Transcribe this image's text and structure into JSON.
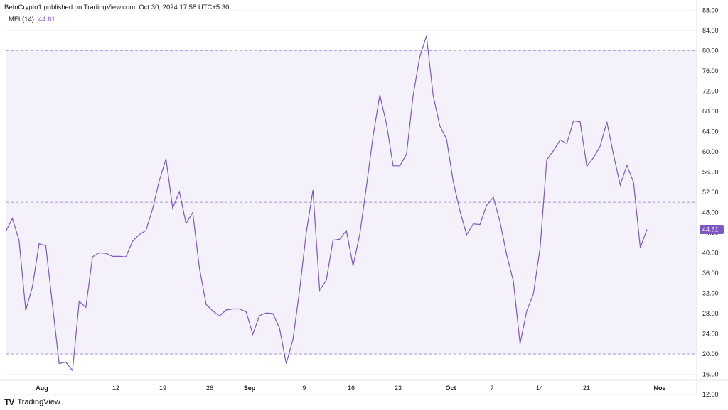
{
  "header": {
    "text": "BeInCrypto1 published on TradingView.com, Oct 30, 2024 17:58 UTC+5:30"
  },
  "legend": {
    "name": "MFI (14)",
    "value": "44.61"
  },
  "footer": {
    "brand": "TradingView",
    "logo": "TV"
  },
  "colors": {
    "line": "#7e57c2",
    "band": "#ede7f6",
    "level": "#9575cd",
    "badge": "#7e57c2"
  },
  "chart_data": {
    "type": "line",
    "ylim": [
      12,
      90
    ],
    "xlim": [
      0,
      150
    ],
    "band": [
      20,
      80
    ],
    "levels": [
      20,
      50,
      80
    ],
    "y_ticks": [
      12,
      16,
      20,
      24,
      28,
      32,
      36,
      40,
      44,
      48,
      52,
      56,
      60,
      64,
      68,
      72,
      76,
      80,
      84,
      88
    ],
    "x_ticks": [
      {
        "x": 8,
        "label": "Aug",
        "bold": true
      },
      {
        "x": 23,
        "label": "12",
        "bold": false
      },
      {
        "x": 33,
        "label": "19",
        "bold": false
      },
      {
        "x": 43,
        "label": "26",
        "bold": false
      },
      {
        "x": 51,
        "label": "Sep",
        "bold": true
      },
      {
        "x": 63,
        "label": "9",
        "bold": false
      },
      {
        "x": 73,
        "label": "16",
        "bold": false
      },
      {
        "x": 83,
        "label": "23",
        "bold": false
      },
      {
        "x": 93,
        "label": "Oct",
        "bold": true
      },
      {
        "x": 103,
        "label": "7",
        "bold": false
      },
      {
        "x": 113,
        "label": "14",
        "bold": false
      },
      {
        "x": 123,
        "label": "21",
        "bold": false
      },
      {
        "x": 137,
        "label": "Nov",
        "bold": true
      }
    ],
    "last_value_label": "44.61",
    "values": [
      44.2,
      46.8,
      42.5,
      28.6,
      33.3,
      41.8,
      41.4,
      29.7,
      18.1,
      18.4,
      16.7,
      30.4,
      29.2,
      39.2,
      40,
      39.9,
      39.3,
      39.3,
      39.2,
      42.3,
      43.6,
      44.4,
      48.7,
      54.3,
      58.6,
      48.8,
      52.1,
      45.8,
      48,
      37,
      29.8,
      28.5,
      27.5,
      28.7,
      28.9,
      28.9,
      28.3,
      23.9,
      27.6,
      28.1,
      28,
      25.1,
      18.1,
      22.8,
      32.6,
      44,
      52.4,
      32.6,
      34.6,
      42.5,
      42.7,
      44.4,
      37.4,
      43.6,
      53.1,
      63.1,
      71.2,
      65.5,
      57.2,
      57.2,
      59.5,
      71.1,
      78.8,
      82.9,
      71.1,
      65.1,
      62.5,
      54.1,
      48.3,
      43.6,
      45.7,
      45.6,
      49.4,
      51,
      46.1,
      39.6,
      34.4,
      22,
      28.5,
      31.9,
      41,
      58.4,
      60.2,
      62.3,
      61.6,
      66.1,
      65.9,
      57.1,
      58.8,
      61.1,
      65.9,
      59.4,
      53.4,
      57.3,
      53.9,
      41,
      44.61
    ]
  }
}
